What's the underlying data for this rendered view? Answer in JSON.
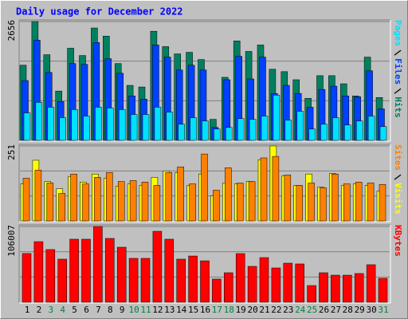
{
  "chart_data": [
    {
      "type": "bar",
      "title": "Daily usage for December 2022",
      "ylim": [
        0,
        2656
      ],
      "yticks": [
        2656
      ],
      "grid": true,
      "series": [
        {
          "name": "Hits",
          "color": "#008060",
          "values": [
            1680,
            2656,
            1915,
            1102,
            2060,
            1897,
            2512,
            2331,
            1717,
            1229,
            1193,
            2439,
            2096,
            1933,
            1969,
            1807,
            470,
            1409,
            2222,
            1988,
            2132,
            1590,
            1536,
            1355,
            940,
            1446,
            1446,
            1265,
            994,
            1861,
            958
          ]
        },
        {
          "name": "Files",
          "color": "#0040ff",
          "values": [
            1337,
            2240,
            1518,
            867,
            1717,
            1699,
            2186,
            1825,
            1500,
            994,
            922,
            2132,
            1861,
            1572,
            1680,
            1572,
            289,
            1355,
            1879,
            1373,
            1861,
            1048,
            1229,
            1048,
            741,
            1138,
            1211,
            994,
            976,
            1554,
            705
          ]
        },
        {
          "name": "Pages",
          "color": "#00e0ff",
          "values": [
            614,
            849,
            741,
            506,
            687,
            542,
            741,
            723,
            687,
            578,
            578,
            741,
            632,
            361,
            506,
            434,
            253,
            289,
            488,
            470,
            542,
            1012,
            452,
            650,
            253,
            361,
            506,
            343,
            434,
            542,
            307
          ]
        }
      ]
    },
    {
      "type": "bar",
      "ylim": [
        0,
        251
      ],
      "yticks": [
        251
      ],
      "grid": true,
      "series": [
        {
          "name": "Visits",
          "color": "#ffff00",
          "values": [
            124,
            203,
            132,
            108,
            149,
            130,
            157,
            143,
            116,
            124,
            119,
            146,
            167,
            162,
            119,
            157,
            84,
            127,
            124,
            132,
            205,
            251,
            151,
            119,
            157,
            113,
            159,
            119,
            124,
            119,
            100
          ]
        },
        {
          "name": "Sites",
          "color": "#ff8000",
          "values": [
            143,
            170,
            127,
            92,
            157,
            124,
            146,
            162,
            132,
            135,
            130,
            119,
            162,
            181,
            124,
            224,
            103,
            178,
            127,
            132,
            211,
            216,
            154,
            119,
            127,
            111,
            157,
            124,
            130,
            127,
            122
          ]
        }
      ]
    },
    {
      "type": "bar",
      "ylim": [
        0,
        106007
      ],
      "yticks": [
        106007
      ],
      "grid": true,
      "categories": [
        "1",
        "2",
        "3",
        "4",
        "5",
        "6",
        "7",
        "8",
        "9",
        "10",
        "11",
        "12",
        "13",
        "14",
        "15",
        "16",
        "17",
        "18",
        "19",
        "20",
        "21",
        "22",
        "23",
        "24",
        "25",
        "26",
        "27",
        "28",
        "29",
        "30",
        "31"
      ],
      "category_colors": [
        "#000000",
        "#000000",
        "#008040",
        "#008040",
        "#000000",
        "#000000",
        "#000000",
        "#000000",
        "#000000",
        "#008040",
        "#008040",
        "#000000",
        "#000000",
        "#000000",
        "#000000",
        "#000000",
        "#008040",
        "#008040",
        "#000000",
        "#000000",
        "#000000",
        "#000000",
        "#000000",
        "#008040",
        "#008040",
        "#000000",
        "#000000",
        "#000000",
        "#000000",
        "#000000",
        "#008040"
      ],
      "series": [
        {
          "name": "KBytes",
          "color": "#ff0000",
          "values": [
            68200,
            84800,
            73700,
            60300,
            88200,
            88200,
            106007,
            89300,
            77000,
            61400,
            61400,
            99300,
            88200,
            60300,
            64700,
            58000,
            32400,
            41300,
            68100,
            50200,
            62500,
            48000,
            54700,
            53600,
            23400,
            41300,
            37900,
            37900,
            40200,
            52500,
            33500
          ]
        }
      ]
    }
  ]
}
